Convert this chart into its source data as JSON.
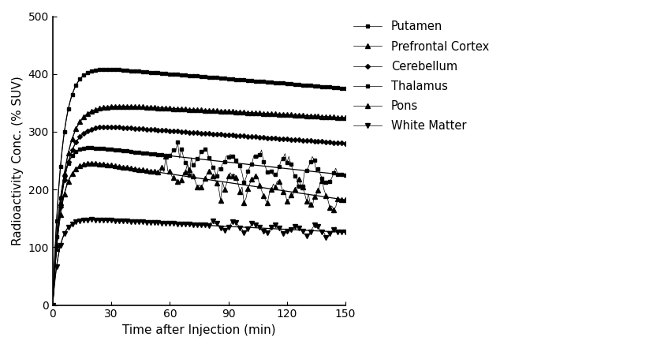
{
  "xlabel": "Time after Injection (min)",
  "ylabel": "Radioactivity Conc. (% SUV)",
  "xlim": [
    0,
    150
  ],
  "ylim": [
    0,
    500
  ],
  "yticks": [
    0,
    100,
    200,
    300,
    400,
    500
  ],
  "xticks": [
    0,
    30,
    60,
    90,
    120,
    150
  ],
  "background_color": "#ffffff",
  "line_color": "#000000",
  "series": [
    {
      "name": "Putamen",
      "marker": "s",
      "markersize": 3.5,
      "curve_type": "putamen"
    },
    {
      "name": "Prefrontal Cortex",
      "marker": "^",
      "markersize": 4,
      "curve_type": "prefrontal"
    },
    {
      "name": "Cerebellum",
      "marker": "D",
      "markersize": 3,
      "curve_type": "cerebellum"
    },
    {
      "name": "Thalamus",
      "marker": "s",
      "markersize": 3.5,
      "curve_type": "thalamus"
    },
    {
      "name": "Pons",
      "marker": "^",
      "markersize": 4,
      "curve_type": "pons"
    },
    {
      "name": "White Matter",
      "marker": "v",
      "markersize": 4,
      "curve_type": "white_matter"
    }
  ]
}
